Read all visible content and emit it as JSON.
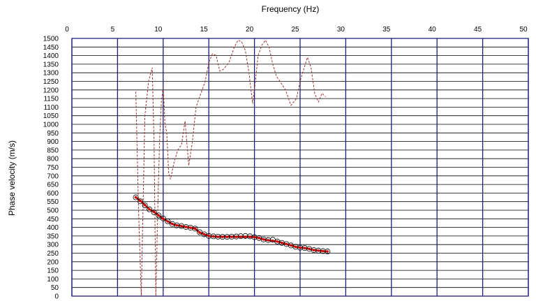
{
  "chart_data": {
    "type": "line",
    "title": "",
    "xlabel": "Frequency (Hz)",
    "ylabel": "Phase velocity (m/s)",
    "xlim": [
      0,
      50
    ],
    "ylim": [
      0,
      1500
    ],
    "x_ticks": [
      0,
      5,
      10,
      15,
      20,
      25,
      30,
      35,
      40,
      45,
      50
    ],
    "y_ticks": [
      0,
      50,
      100,
      150,
      200,
      250,
      300,
      350,
      400,
      450,
      500,
      550,
      600,
      650,
      700,
      750,
      800,
      850,
      900,
      950,
      1000,
      1050,
      1100,
      1150,
      1200,
      1250,
      1300,
      1350,
      1400,
      1450,
      1500
    ],
    "x_axis_position": "top",
    "grid": true,
    "legend": "none",
    "colors": {
      "grid_major": "#1f1f7a",
      "grid_minor": "#000000",
      "picked": "#cc0000",
      "circles": "#000000",
      "dashed": "#993333"
    },
    "series": [
      {
        "style": "dashed",
        "x": [
          7.0,
          7.3,
          7.6,
          8.0,
          8.4,
          8.8,
          9.0,
          9.2,
          9.4,
          9.6,
          9.8,
          10.0,
          10.2,
          10.4,
          10.6,
          10.8,
          11.2,
          11.6,
          12.0,
          12.4,
          12.8,
          13.2,
          13.6,
          14.0,
          14.6,
          15.0,
          15.4,
          15.8,
          16.2,
          16.6,
          17.2,
          17.8,
          18.2,
          18.6,
          19.0,
          19.4,
          19.8,
          20.1,
          20.4,
          20.8,
          21.2,
          21.6,
          22.0,
          22.4,
          22.8,
          23.4,
          24.0,
          24.6,
          25.0,
          25.4,
          25.8,
          26.2,
          26.6,
          27.0,
          27.4,
          27.8
        ],
        "y": [
          1190,
          500,
          0,
          1050,
          1250,
          1330,
          900,
          0,
          500,
          900,
          1130,
          1220,
          1000,
          950,
          720,
          680,
          780,
          850,
          880,
          1020,
          760,
          900,
          1100,
          1160,
          1250,
          1360,
          1410,
          1400,
          1310,
          1320,
          1360,
          1450,
          1490,
          1480,
          1430,
          1300,
          1120,
          1250,
          1400,
          1460,
          1490,
          1450,
          1350,
          1280,
          1250,
          1200,
          1110,
          1150,
          1250,
          1320,
          1390,
          1330,
          1180,
          1130,
          1180,
          1160
        ]
      },
      {
        "style": "picked",
        "x": [
          7.0,
          7.5,
          8.0,
          8.5,
          9.0,
          9.5,
          10.0,
          10.5,
          11.0,
          11.5,
          12.0,
          12.5,
          13.0,
          13.5,
          14.0,
          14.5,
          15.0,
          15.5,
          16.0,
          16.5,
          17.0,
          17.5,
          18.0,
          18.5,
          19.0,
          19.5,
          20.0,
          20.5,
          21.0,
          21.5,
          22.0,
          22.5,
          23.0,
          23.5,
          24.0,
          24.5,
          25.0,
          25.5,
          26.0,
          26.5,
          27.0,
          27.5,
          28.0
        ],
        "y": [
          575,
          555,
          530,
          505,
          490,
          470,
          450,
          435,
          420,
          412,
          408,
          402,
          398,
          393,
          370,
          360,
          350,
          348,
          345,
          345,
          345,
          345,
          345,
          345,
          345,
          345,
          343,
          338,
          330,
          325,
          322,
          318,
          310,
          303,
          295,
          287,
          282,
          280,
          275,
          268,
          265,
          262,
          260
        ]
      },
      {
        "style": "circles",
        "x": [
          7.0,
          7.5,
          8.0,
          8.5,
          9.0,
          9.5,
          10.0,
          10.5,
          11.0,
          11.5,
          12.0,
          12.5,
          13.0,
          13.5,
          14.0,
          14.5,
          15.0,
          15.5,
          16.0,
          16.5,
          17.0,
          17.5,
          18.0,
          18.5,
          19.0,
          19.5,
          20.0,
          20.5,
          21.0,
          21.5,
          22.0,
          22.5,
          23.0,
          23.5,
          24.0,
          24.5,
          25.0,
          25.5,
          26.0,
          26.5,
          27.0,
          27.5,
          28.0
        ],
        "y": [
          575,
          552,
          528,
          505,
          488,
          470,
          452,
          435,
          420,
          412,
          408,
          402,
          398,
          393,
          372,
          360,
          350,
          348,
          346,
          345,
          345,
          346,
          347,
          349,
          350,
          348,
          343,
          338,
          330,
          326,
          328,
          318,
          310,
          303,
          295,
          287,
          282,
          280,
          275,
          268,
          265,
          262,
          260
        ]
      }
    ]
  }
}
